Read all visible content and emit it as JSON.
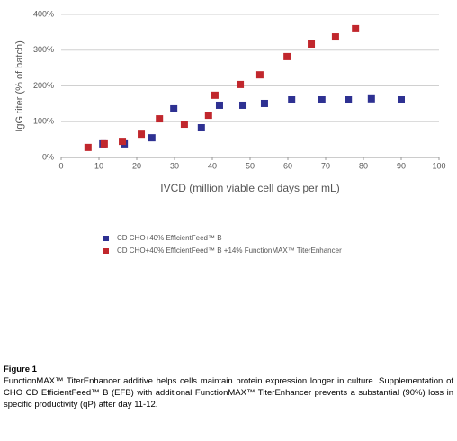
{
  "chart_data": {
    "type": "scatter",
    "y_label": "IgG titer (% of batch)",
    "x_label": "IVCD (million viable cell days per mL)",
    "xlim": [
      0,
      100
    ],
    "xticks": [
      0,
      10,
      20,
      30,
      40,
      50,
      60,
      70,
      80,
      90,
      100
    ],
    "ylim": [
      0,
      400
    ],
    "yticks": [
      {
        "value": 0,
        "label": "0%"
      },
      {
        "value": 100,
        "label": "100%"
      },
      {
        "value": 200,
        "label": "200%"
      },
      {
        "value": 300,
        "label": "300%"
      },
      {
        "value": 400,
        "label": "400%"
      }
    ],
    "grid": true,
    "series": [
      {
        "name": "CD CHO+40% EfficientFeed™ B",
        "color": "#2e3192",
        "x": [
          11,
          16.7,
          24,
          29.8,
          37.1,
          41.9,
          48.1,
          53.8,
          61,
          69,
          76,
          82.1,
          90
        ],
        "values": [
          38,
          38,
          55,
          136,
          83,
          146,
          146,
          151,
          161,
          161,
          161,
          164,
          161
        ]
      },
      {
        "name": "CD CHO+40% EfficientFeed™ B +14% FunctionMAX™ TiterEnhancer",
        "color": "#c1272d",
        "x": [
          7.1,
          11.4,
          16.2,
          21.2,
          26,
          32.6,
          39,
          40.7,
          47.4,
          52.6,
          59.8,
          66.2,
          72.6,
          77.9
        ],
        "values": [
          28,
          38,
          45,
          65,
          108,
          93,
          118,
          174,
          204,
          231,
          282,
          317,
          337,
          360
        ]
      }
    ]
  },
  "figure": {
    "label": "Figure 1",
    "text": "FunctionMAX™ TiterEnhancer additive helps cells maintain protein expression longer in culture. Supplementation of CHO CD EfficientFeed™ B (EFB) with additional FunctionMAX™ TiterEnhancer prevents a substantial (90%) loss in specific productivity (qP) after day 11-12."
  }
}
